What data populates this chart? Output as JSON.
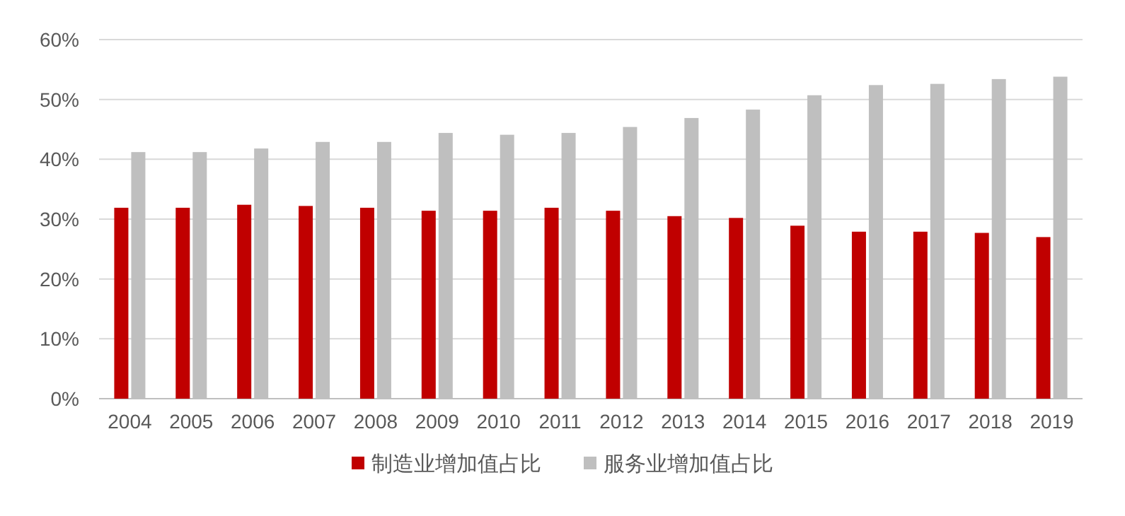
{
  "chart_data": {
    "type": "bar",
    "categories": [
      "2004",
      "2005",
      "2006",
      "2007",
      "2008",
      "2009",
      "2010",
      "2011",
      "2012",
      "2013",
      "2014",
      "2015",
      "2016",
      "2017",
      "2018",
      "2019"
    ],
    "series": [
      {
        "name": "制造业增加值占比",
        "color": "#c00000",
        "values": [
          31.9,
          31.9,
          32.4,
          32.2,
          31.9,
          31.4,
          31.4,
          31.9,
          31.4,
          30.5,
          30.2,
          28.9,
          27.9,
          27.9,
          27.7,
          27.0
        ]
      },
      {
        "name": "服务业增加值占比",
        "color": "#bfbfbf",
        "values": [
          41.2,
          41.2,
          41.8,
          42.9,
          42.9,
          44.4,
          44.1,
          44.4,
          45.4,
          46.9,
          48.3,
          50.7,
          52.4,
          52.6,
          53.4,
          53.8
        ]
      }
    ],
    "ylim": [
      0,
      60
    ],
    "yticks": [
      {
        "value": 0,
        "label": "0%"
      },
      {
        "value": 10,
        "label": "10%"
      },
      {
        "value": 20,
        "label": "20%"
      },
      {
        "value": 30,
        "label": "30%"
      },
      {
        "value": 40,
        "label": "40%"
      },
      {
        "value": 50,
        "label": "50%"
      },
      {
        "value": 60,
        "label": "60%"
      }
    ],
    "grid": "y",
    "legend": "bottom"
  }
}
